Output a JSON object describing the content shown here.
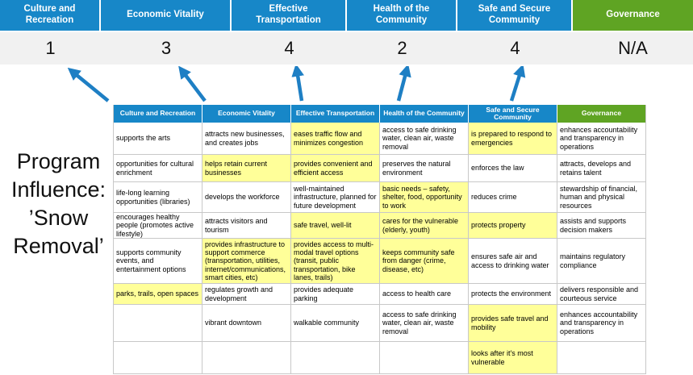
{
  "colors": {
    "category_blue": "#1787C8",
    "governance_green": "#5FA423",
    "highlight_yellow": "#FFFF99",
    "score_band_gray": "#F1F1F1",
    "arrow_blue": "#1E7FC4"
  },
  "program_label": {
    "text": "Program Influence: ’Snow Removal’",
    "lines": [
      "Program",
      "Influence:",
      "’Snow",
      "Removal’"
    ]
  },
  "categories": [
    {
      "label": "Culture and Recreation",
      "score": "1",
      "theme": "blue"
    },
    {
      "label": "Economic Vitality",
      "score": "3",
      "theme": "blue"
    },
    {
      "label": "Effective Transportation",
      "score": "4",
      "theme": "blue"
    },
    {
      "label": "Health of the Community",
      "score": "2",
      "theme": "blue"
    },
    {
      "label": "Safe and Secure Community",
      "score": "4",
      "theme": "blue"
    },
    {
      "label": "Governance",
      "score": "N/A",
      "theme": "green"
    }
  ],
  "matrix": {
    "headers": [
      {
        "label": "Culture and Recreation",
        "theme": "blue"
      },
      {
        "label": "Economic Vitality",
        "theme": "blue"
      },
      {
        "label": "Effective Transportation",
        "theme": "blue"
      },
      {
        "label": "Health of the Community",
        "theme": "blue"
      },
      {
        "label": "Safe and Secure Community",
        "theme": "blue"
      },
      {
        "label": "Governance",
        "theme": "green"
      }
    ],
    "rows": [
      {
        "cells": [
          {
            "text": "supports the arts",
            "hl": false
          },
          {
            "text": "attracts new businesses, and creates jobs",
            "hl": false
          },
          {
            "text": "eases traffic flow and minimizes congestion",
            "hl": true
          },
          {
            "text": "access to safe drinking water, clean air, waste removal",
            "hl": false
          },
          {
            "text": "is prepared to respond to emergencies",
            "hl": true
          },
          {
            "text": "enhances accountability and transparency in operations",
            "hl": false
          }
        ]
      },
      {
        "cells": [
          {
            "text": "opportunities for cultural enrichment",
            "hl": false
          },
          {
            "text": "helps retain current businesses",
            "hl": true
          },
          {
            "text": "provides convenient and efficient access",
            "hl": true
          },
          {
            "text": "preserves the natural environment",
            "hl": false
          },
          {
            "text": "enforces the law",
            "hl": false
          },
          {
            "text": "attracts, develops and retains talent",
            "hl": false
          }
        ]
      },
      {
        "cells": [
          {
            "text": "life-long learning opportunities (libraries)",
            "hl": false
          },
          {
            "text": "develops the workforce",
            "hl": false
          },
          {
            "text": "well-maintained infrastructure, planned for future development",
            "hl": false
          },
          {
            "text": "basic needs – safety, shelter, food, opportunity to work",
            "hl": true
          },
          {
            "text": "reduces crime",
            "hl": false
          },
          {
            "text": "stewardship of financial, human and physical resources",
            "hl": false
          }
        ]
      },
      {
        "cells": [
          {
            "text": "encourages healthy people (promotes active lifestyle)",
            "hl": false
          },
          {
            "text": "attracts visitors and tourism",
            "hl": false
          },
          {
            "text": "safe travel, well-lit",
            "hl": true
          },
          {
            "text": "cares for the vulnerable (elderly, youth)",
            "hl": true
          },
          {
            "text": "protects property",
            "hl": true
          },
          {
            "text": "assists and supports decision makers",
            "hl": false
          }
        ]
      },
      {
        "cells": [
          {
            "text": "supports community events, and entertainment options",
            "hl": false
          },
          {
            "text": "provides infrastructure to support commerce (transportation, utilities, internet/communications, smart cities, etc)",
            "hl": true
          },
          {
            "text": "provides access to multi-modal travel options (transit, public transportation, bike lanes, trails)",
            "hl": true
          },
          {
            "text": "keeps community safe from danger (crime, disease, etc)",
            "hl": true
          },
          {
            "text": "ensures safe air and access to drinking water",
            "hl": false
          },
          {
            "text": "maintains regulatory compliance",
            "hl": false
          }
        ]
      },
      {
        "cells": [
          {
            "text": "parks, trails, open spaces",
            "hl": true
          },
          {
            "text": "regulates growth and development",
            "hl": false
          },
          {
            "text": "provides adequate parking",
            "hl": false
          },
          {
            "text": "access to health care",
            "hl": false
          },
          {
            "text": "protects the environment",
            "hl": false
          },
          {
            "text": "delivers responsible and courteous service",
            "hl": false
          }
        ]
      },
      {
        "cells": [
          {
            "text": "",
            "hl": false
          },
          {
            "text": "vibrant downtown",
            "hl": false
          },
          {
            "text": "walkable community",
            "hl": false
          },
          {
            "text": "access to safe drinking water, clean air, waste removal",
            "hl": false
          },
          {
            "text": "provides safe travel and mobility",
            "hl": true
          },
          {
            "text": "enhances accountability and transparency in operations",
            "hl": false
          }
        ]
      },
      {
        "cells": [
          {
            "text": "",
            "hl": false
          },
          {
            "text": "",
            "hl": false
          },
          {
            "text": "",
            "hl": false
          },
          {
            "text": "",
            "hl": false
          },
          {
            "text": "looks after it's most vulnerable",
            "hl": true
          },
          {
            "text": "",
            "hl": false
          }
        ]
      }
    ]
  }
}
